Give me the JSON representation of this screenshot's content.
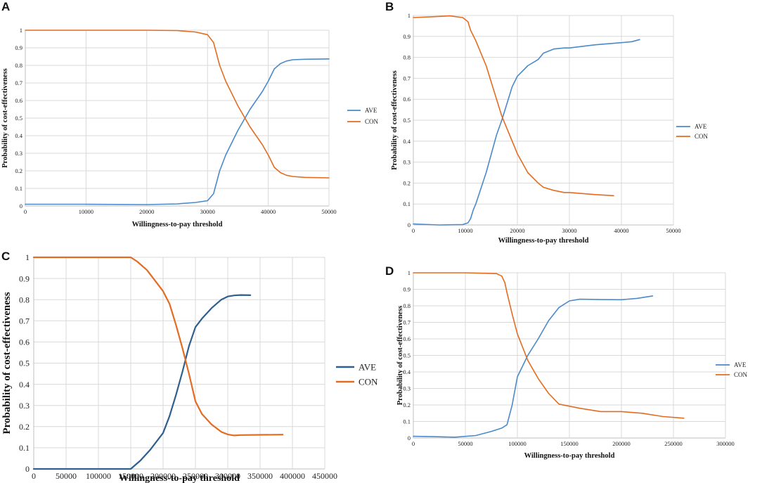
{
  "colors": {
    "ave": "#4A8ACB",
    "ave_dark": "#2E5F8E",
    "con": "#E36C21"
  },
  "chart_data": [
    {
      "panel": "A",
      "type": "line",
      "xlabel": "Willingness-to-pay threshold",
      "ylabel": "Probability of cost-effectiveness",
      "xlim": [
        0,
        50000
      ],
      "ylim": [
        0,
        1
      ],
      "xticks": [
        0,
        10000,
        20000,
        30000,
        40000,
        50000
      ],
      "xtick_labels": [
        "0",
        "10000",
        "20000",
        "30000",
        "40000",
        "50000"
      ],
      "yticks": [
        0,
        0.1,
        0.2,
        0.3,
        0.4,
        0.5,
        0.6,
        0.7,
        0.8,
        0.9,
        1
      ],
      "ytick_labels": [
        "0",
        "0.1",
        "0.2",
        "0.3",
        "0.4",
        "0.5",
        "0.6",
        "0.7",
        "0.8",
        "0.9",
        "1"
      ],
      "legend": "right",
      "series": [
        {
          "name": "AVE",
          "x": [
            0,
            10000,
            20000,
            25000,
            28000,
            30000,
            31000,
            32000,
            33000,
            35000,
            37000,
            39000,
            40000,
            41000,
            42000,
            43000,
            44000,
            46000,
            50000
          ],
          "y": [
            0.01,
            0.01,
            0.008,
            0.012,
            0.02,
            0.03,
            0.07,
            0.2,
            0.29,
            0.43,
            0.55,
            0.65,
            0.71,
            0.78,
            0.81,
            0.825,
            0.832,
            0.835,
            0.837
          ]
        },
        {
          "name": "CON",
          "x": [
            0,
            10000,
            20000,
            25000,
            28000,
            30000,
            31000,
            32000,
            33000,
            35000,
            37000,
            39000,
            40000,
            41000,
            42000,
            43000,
            44000,
            46000,
            50000
          ],
          "y": [
            1.0,
            1.0,
            1.0,
            0.998,
            0.99,
            0.975,
            0.93,
            0.8,
            0.71,
            0.57,
            0.45,
            0.35,
            0.29,
            0.22,
            0.19,
            0.175,
            0.168,
            0.163,
            0.16
          ]
        }
      ]
    },
    {
      "panel": "B",
      "type": "line",
      "xlabel": "Willingness-to-pay threshold",
      "ylabel": "Probability of cost-effectiveness",
      "xlim": [
        0,
        50000
      ],
      "ylim": [
        0,
        1
      ],
      "xticks": [
        0,
        10000,
        20000,
        30000,
        40000,
        50000
      ],
      "xtick_labels": [
        "0",
        "10000",
        "20000",
        "30000",
        "40000",
        "50000"
      ],
      "yticks": [
        0,
        0.1,
        0.2,
        0.3,
        0.4,
        0.5,
        0.6,
        0.7,
        0.8,
        0.9,
        1
      ],
      "ytick_labels": [
        "0",
        "0.1",
        "0.2",
        "0.3",
        "0.4",
        "0.5",
        "0.6",
        "0.7",
        "0.8",
        "0.9",
        "1"
      ],
      "legend": "right",
      "series": [
        {
          "name": "AVE",
          "x": [
            0,
            5000,
            9500,
            10500,
            11000,
            11500,
            12000,
            14000,
            16000,
            17000,
            18000,
            19000,
            20000,
            22000,
            24000,
            25000,
            27000,
            29000,
            30000,
            35000,
            40000,
            42000,
            43500
          ],
          "y": [
            0.005,
            0.0,
            0.002,
            0.01,
            0.03,
            0.07,
            0.1,
            0.25,
            0.43,
            0.5,
            0.58,
            0.66,
            0.71,
            0.76,
            0.79,
            0.82,
            0.84,
            0.845,
            0.845,
            0.86,
            0.87,
            0.875,
            0.885
          ]
        },
        {
          "name": "CON",
          "x": [
            0,
            3000,
            7000,
            9500,
            10500,
            11000,
            12000,
            14000,
            16000,
            17000,
            18000,
            19000,
            20000,
            22000,
            24000,
            25000,
            27000,
            29000,
            30000,
            35000,
            38500
          ],
          "y": [
            0.99,
            0.993,
            0.998,
            0.99,
            0.97,
            0.93,
            0.88,
            0.76,
            0.6,
            0.52,
            0.46,
            0.4,
            0.34,
            0.25,
            0.2,
            0.18,
            0.165,
            0.155,
            0.155,
            0.145,
            0.14
          ]
        }
      ]
    },
    {
      "panel": "C",
      "type": "line",
      "xlabel": "Willingness-to-pay threshold",
      "ylabel": "Probability of cost-effectiveness",
      "xlim": [
        0,
        450000
      ],
      "ylim": [
        0,
        1
      ],
      "xticks": [
        0,
        50000,
        100000,
        150000,
        200000,
        250000,
        300000,
        350000,
        400000,
        450000
      ],
      "xtick_labels": [
        "0",
        "50000",
        "100000",
        "150000",
        "200000",
        "250000",
        "300000",
        "350000",
        "400000",
        "450000"
      ],
      "yticks": [
        0,
        0.1,
        0.2,
        0.3,
        0.4,
        0.5,
        0.6,
        0.7,
        0.8,
        0.9,
        1
      ],
      "ytick_labels": [
        "0",
        "0.1",
        "0.2",
        "0.3",
        "0.4",
        "0.5",
        "0.6",
        "0.7",
        "0.8",
        "0.9",
        "1"
      ],
      "legend": "right",
      "series": [
        {
          "name": "AVE",
          "x": [
            0,
            100000,
            150000,
            165000,
            180000,
            200000,
            210000,
            220000,
            230000,
            240000,
            250000,
            260000,
            275000,
            290000,
            300000,
            310000,
            320000,
            335000
          ],
          "y": [
            0.0,
            0.0,
            0.0,
            0.04,
            0.09,
            0.17,
            0.25,
            0.35,
            0.46,
            0.58,
            0.67,
            0.71,
            0.76,
            0.8,
            0.815,
            0.82,
            0.822,
            0.821
          ]
        },
        {
          "name": "CON",
          "x": [
            0,
            100000,
            140000,
            150000,
            160000,
            175000,
            190000,
            200000,
            210000,
            220000,
            230000,
            240000,
            250000,
            260000,
            275000,
            290000,
            300000,
            310000,
            320000,
            385000
          ],
          "y": [
            1.0,
            1.0,
            1.0,
            1.0,
            0.98,
            0.94,
            0.88,
            0.84,
            0.78,
            0.68,
            0.57,
            0.45,
            0.32,
            0.26,
            0.21,
            0.175,
            0.163,
            0.158,
            0.16,
            0.162
          ]
        }
      ]
    },
    {
      "panel": "D",
      "type": "line",
      "xlabel": "Willingness-to-pay threshold",
      "ylabel": "Probability of cost-effectiveness",
      "xlim": [
        0,
        300000
      ],
      "ylim": [
        0,
        1
      ],
      "xticks": [
        0,
        50000,
        100000,
        150000,
        200000,
        250000,
        300000
      ],
      "xtick_labels": [
        "0",
        "50000",
        "100000",
        "150000",
        "200000",
        "250000",
        "300000"
      ],
      "yticks": [
        0,
        0.1,
        0.2,
        0.3,
        0.4,
        0.5,
        0.6,
        0.7,
        0.8,
        0.9,
        1
      ],
      "ytick_labels": [
        "0",
        "0.1",
        "0.2",
        "0.3",
        "0.4",
        "0.5",
        "0.6",
        "0.7",
        "0.8",
        "0.9",
        "1"
      ],
      "legend": "right",
      "series": [
        {
          "name": "AVE",
          "x": [
            0,
            20000,
            40000,
            60000,
            75000,
            85000,
            90000,
            95000,
            100000,
            110000,
            120000,
            130000,
            140000,
            150000,
            160000,
            180000,
            200000,
            215000,
            230000
          ],
          "y": [
            0.01,
            0.008,
            0.005,
            0.015,
            0.04,
            0.06,
            0.08,
            0.2,
            0.37,
            0.5,
            0.6,
            0.71,
            0.79,
            0.83,
            0.84,
            0.838,
            0.837,
            0.845,
            0.86
          ]
        },
        {
          "name": "CON",
          "x": [
            0,
            20000,
            50000,
            80000,
            85000,
            88000,
            90000,
            95000,
            100000,
            110000,
            120000,
            130000,
            140000,
            160000,
            180000,
            200000,
            220000,
            240000,
            260000
          ],
          "y": [
            1.0,
            1.0,
            1.0,
            0.995,
            0.98,
            0.94,
            0.88,
            0.75,
            0.63,
            0.47,
            0.36,
            0.27,
            0.205,
            0.18,
            0.16,
            0.16,
            0.15,
            0.13,
            0.12
          ]
        }
      ]
    }
  ]
}
